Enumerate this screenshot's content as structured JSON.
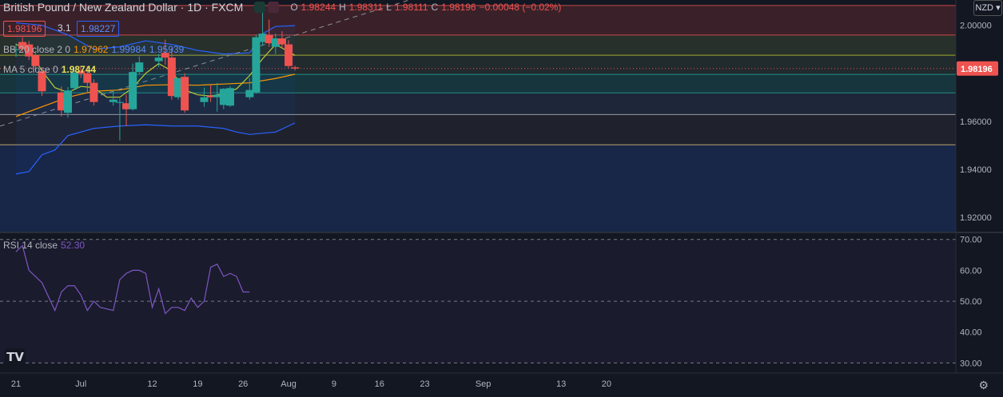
{
  "header": {
    "symbol": "British Pound / New Zealand Dollar · 1D · FXCM",
    "o_label": "O",
    "o_value": "1.98244",
    "h_label": "H",
    "h_value": "1.98311",
    "l_label": "L",
    "l_value": "1.98111",
    "c_label": "C",
    "c_value": "1.98196",
    "change": "−0.00048 (−0.02%)",
    "bid": "1.98196",
    "spread": "3.1",
    "ask": "1.98227",
    "currency": "NZD"
  },
  "indicators": {
    "bb": {
      "label": "BB 20 close 2 0",
      "basis": "1.97962",
      "upper": "1.99984",
      "lower": "1.95939"
    },
    "ma": {
      "label": "MA 5 close 0",
      "value": "1.98744"
    },
    "rsi": {
      "label": "RSI 14 close",
      "value": "52.30"
    }
  },
  "colors": {
    "up": "#26a69a",
    "down": "#ef5350",
    "bb_basis": "#ff9800",
    "bb_band": "#2962ff",
    "ma": "#c0ca33",
    "rsi": "#7e57c2",
    "bg": "#131722"
  },
  "chart_data": {
    "type": "candlestick",
    "y_labels": [
      "2.00000",
      "1.98000",
      "1.96000",
      "1.94000",
      "1.92000"
    ],
    "last_price": "1.98196",
    "rsi_labels": [
      "70.00",
      "60.00",
      "50.00",
      "40.00",
      "30.00"
    ],
    "x_labels": [
      "21",
      "Jul",
      "12",
      "19",
      "26",
      "Aug",
      "9",
      "16",
      "23",
      "Sep",
      "13",
      "20"
    ],
    "x_label_days": [
      0,
      10,
      21,
      28,
      35,
      42,
      49,
      56,
      63,
      72,
      84,
      91
    ],
    "ylim": [
      1.914,
      2.0105
    ],
    "rsi_ylim": [
      27,
      72
    ],
    "fib_levels": [
      2.0082,
      1.9959,
      1.9875,
      1.9795,
      1.9718,
      1.9628,
      1.9502
    ],
    "candles": [
      {
        "d": 0,
        "o": 1.9898,
        "h": 1.9925,
        "l": 1.9868,
        "c": 1.99
      },
      {
        "d": 1,
        "o": 1.993,
        "h": 1.995,
        "l": 1.9885,
        "c": 1.99
      },
      {
        "d": 2,
        "o": 1.992,
        "h": 1.9935,
        "l": 1.9855,
        "c": 1.987
      },
      {
        "d": 3,
        "o": 1.9875,
        "h": 1.9885,
        "l": 1.9815,
        "c": 1.983
      },
      {
        "d": 4,
        "o": 1.9808,
        "h": 1.9822,
        "l": 1.9705,
        "c": 1.9725
      },
      {
        "d": 7,
        "o": 1.972,
        "h": 1.9745,
        "l": 1.962,
        "c": 1.9645
      },
      {
        "d": 8,
        "o": 1.9635,
        "h": 1.9742,
        "l": 1.9615,
        "c": 1.9728
      },
      {
        "d": 9,
        "o": 1.9738,
        "h": 1.981,
        "l": 1.9728,
        "c": 1.9802
      },
      {
        "d": 10,
        "o": 1.981,
        "h": 1.9825,
        "l": 1.978,
        "c": 1.9798
      },
      {
        "d": 11,
        "o": 1.98,
        "h": 1.983,
        "l": 1.9715,
        "c": 1.976
      },
      {
        "d": 12,
        "o": 1.976,
        "h": 1.9775,
        "l": 1.9665,
        "c": 1.968
      },
      {
        "d": 15,
        "o": 1.968,
        "h": 1.973,
        "l": 1.9665,
        "c": 1.969
      },
      {
        "d": 16,
        "o": 1.968,
        "h": 1.9695,
        "l": 1.952,
        "c": 1.968
      },
      {
        "d": 17,
        "o": 1.9675,
        "h": 1.9712,
        "l": 1.958,
        "c": 1.965
      },
      {
        "d": 18,
        "o": 1.965,
        "h": 1.984,
        "l": 1.9645,
        "c": 1.9805
      },
      {
        "d": 19,
        "o": 1.9805,
        "h": 1.987,
        "l": 1.9795,
        "c": 1.9845
      },
      {
        "d": 22,
        "o": 1.985,
        "h": 1.988,
        "l": 1.9825,
        "c": 1.9865
      },
      {
        "d": 23,
        "o": 1.9885,
        "h": 1.994,
        "l": 1.9835,
        "c": 1.9865
      },
      {
        "d": 24,
        "o": 1.9865,
        "h": 1.9905,
        "l": 1.969,
        "c": 1.9705
      },
      {
        "d": 25,
        "o": 1.97,
        "h": 1.978,
        "l": 1.969,
        "c": 1.978
      },
      {
        "d": 26,
        "o": 1.9785,
        "h": 1.98,
        "l": 1.9635,
        "c": 1.9645
      },
      {
        "d": 29,
        "o": 1.968,
        "h": 1.974,
        "l": 1.966,
        "c": 1.97
      },
      {
        "d": 30,
        "o": 1.9705,
        "h": 1.975,
        "l": 1.968,
        "c": 1.97
      },
      {
        "d": 31,
        "o": 1.97,
        "h": 1.976,
        "l": 1.964,
        "c": 1.971
      },
      {
        "d": 32,
        "o": 1.9668,
        "h": 1.9738,
        "l": 1.965,
        "c": 1.9735
      },
      {
        "d": 33,
        "o": 1.9665,
        "h": 1.9745,
        "l": 1.966,
        "c": 1.9738
      },
      {
        "d": 36,
        "o": 1.97,
        "h": 1.978,
        "l": 1.969,
        "c": 1.973
      },
      {
        "d": 37,
        "o": 1.972,
        "h": 1.996,
        "l": 1.9715,
        "c": 1.995
      },
      {
        "d": 38,
        "o": 1.993,
        "h": 2.0065,
        "l": 1.9915,
        "c": 1.9965
      },
      {
        "d": 39,
        "o": 1.996,
        "h": 2.0023,
        "l": 1.991,
        "c": 1.9925
      },
      {
        "d": 40,
        "o": 1.991,
        "h": 1.9965,
        "l": 1.988,
        "c": 1.9945
      },
      {
        "d": 41,
        "o": 1.9945,
        "h": 1.9975,
        "l": 1.9905,
        "c": 1.992
      },
      {
        "d": 42,
        "o": 1.992,
        "h": 1.9938,
        "l": 1.982,
        "c": 1.983
      },
      {
        "d": 43,
        "o": 1.98244,
        "h": 1.98311,
        "l": 1.98111,
        "c": 1.98196
      }
    ],
    "bb_basis": [
      [
        0,
        1.962
      ],
      [
        4,
        1.966
      ],
      [
        8,
        1.97
      ],
      [
        12,
        1.9725
      ],
      [
        16,
        1.973
      ],
      [
        20,
        1.975
      ],
      [
        24,
        1.9752
      ],
      [
        28,
        1.975
      ],
      [
        32,
        1.9755
      ],
      [
        36,
        1.976
      ],
      [
        40,
        1.9778
      ],
      [
        43,
        1.9796
      ]
    ],
    "bb_upper": [
      [
        0,
        2.001
      ],
      [
        4,
        2.0
      ],
      [
        8,
        1.996
      ],
      [
        12,
        1.99
      ],
      [
        16,
        1.991
      ],
      [
        20,
        1.9935
      ],
      [
        24,
        1.992
      ],
      [
        28,
        1.9895
      ],
      [
        32,
        1.988
      ],
      [
        36,
        1.9885
      ],
      [
        38,
        1.9965
      ],
      [
        40,
        1.9995
      ],
      [
        43,
        1.9998
      ]
    ],
    "bb_lower": [
      [
        0,
        1.938
      ],
      [
        2,
        1.939
      ],
      [
        4,
        1.946
      ],
      [
        6,
        1.948
      ],
      [
        8,
        1.954
      ],
      [
        12,
        1.957
      ],
      [
        16,
        1.958
      ],
      [
        20,
        1.9585
      ],
      [
        24,
        1.958
      ],
      [
        28,
        1.958
      ],
      [
        32,
        1.957
      ],
      [
        34,
        1.9555
      ],
      [
        36,
        1.9545
      ],
      [
        38,
        1.955
      ],
      [
        40,
        1.9555
      ],
      [
        43,
        1.9593
      ]
    ],
    "ma5": [
      [
        0,
        1.992
      ],
      [
        2,
        1.99
      ],
      [
        4,
        1.981
      ],
      [
        6,
        1.974
      ],
      [
        8,
        1.972
      ],
      [
        10,
        1.9745
      ],
      [
        12,
        1.974
      ],
      [
        14,
        1.97
      ],
      [
        16,
        1.97
      ],
      [
        18,
        1.974
      ],
      [
        20,
        1.98
      ],
      [
        22,
        1.984
      ],
      [
        24,
        1.981
      ],
      [
        26,
        1.973
      ],
      [
        28,
        1.971
      ],
      [
        30,
        1.9705
      ],
      [
        32,
        1.9715
      ],
      [
        34,
        1.9735
      ],
      [
        36,
        1.979
      ],
      [
        38,
        1.986
      ],
      [
        40,
        1.992
      ],
      [
        42,
        1.989
      ],
      [
        43,
        1.9874
      ]
    ],
    "trend_line": [
      [
        0,
        1.96
      ],
      [
        60,
        2.01
      ]
    ],
    "rsi": [
      [
        0,
        66
      ],
      [
        1,
        68
      ],
      [
        2,
        60
      ],
      [
        4,
        56
      ],
      [
        6,
        47
      ],
      [
        7,
        53
      ],
      [
        8,
        55
      ],
      [
        9,
        55
      ],
      [
        10,
        52
      ],
      [
        11,
        47
      ],
      [
        12,
        50
      ],
      [
        13,
        48
      ],
      [
        15,
        47
      ],
      [
        16,
        57
      ],
      [
        17,
        59
      ],
      [
        18,
        60
      ],
      [
        19,
        60
      ],
      [
        20,
        59
      ],
      [
        21,
        48
      ],
      [
        22,
        54
      ],
      [
        23,
        46
      ],
      [
        24,
        48
      ],
      [
        25,
        48
      ],
      [
        26,
        47
      ],
      [
        27,
        51
      ],
      [
        28,
        48
      ],
      [
        29,
        50
      ],
      [
        30,
        61
      ],
      [
        31,
        62
      ],
      [
        32,
        58
      ],
      [
        33,
        59
      ],
      [
        34,
        58
      ],
      [
        35,
        53
      ],
      [
        36,
        53
      ]
    ]
  }
}
